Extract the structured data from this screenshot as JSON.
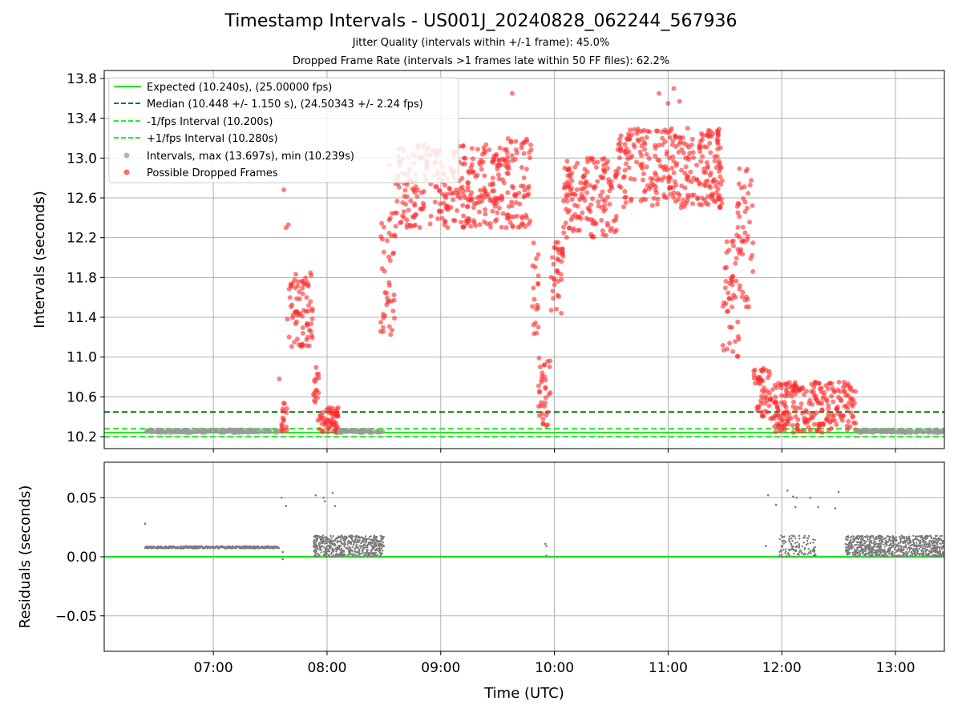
{
  "figure": {
    "title": "Timestamp Intervals - US001J_20240828_062244_567936",
    "subtitle_jitter": "Jitter Quality (intervals within +/-1 frame): 45.0%",
    "subtitle_dropped": "Dropped Frame Rate (intervals >1 frames late within 50 FF files): 62.2%"
  },
  "colors": {
    "expected": "#1ee21e",
    "median": "#007a00",
    "fps_bounds": "#22ee22",
    "intervals": "#999999",
    "dropped": "#ff2a2a",
    "residuals": "#7a7a7a",
    "grid": "#b0b0b0"
  },
  "chart_data": [
    {
      "type": "scatter",
      "xlabel": "",
      "ylabel": "Intervals (seconds)",
      "x_unit": "hours UTC",
      "xlim": [
        6.04,
        13.43
      ],
      "ylim": [
        10.08,
        13.88
      ],
      "yticks": [
        10.2,
        10.6,
        11.0,
        11.4,
        11.8,
        12.2,
        12.6,
        13.0,
        13.4,
        13.8
      ],
      "ytick_labels": [
        "10.2",
        "10.6",
        "11.0",
        "11.4",
        "11.8",
        "12.2",
        "12.6",
        "13.0",
        "13.4",
        "13.8"
      ],
      "xticks": [
        7,
        8,
        9,
        10,
        11,
        12,
        13
      ],
      "grid": true,
      "legend_position": "top-left",
      "legend": [
        "Expected (10.240s), (25.00000 fps)",
        "Median (10.448 +/- 1.150 s), (24.50343 +/- 2.24 fps)",
        "-1/fps Interval (10.200s)",
        "+1/fps Interval (10.280s)",
        "Intervals, max (13.697s), min (10.239s)",
        "Possible Dropped Frames"
      ],
      "hlines": [
        {
          "name": "Expected",
          "y": 10.24,
          "style": "solid"
        },
        {
          "name": "Median",
          "y": 10.448,
          "style": "dashed"
        },
        {
          "name": "-1/fps Interval",
          "y": 10.2,
          "style": "dashed"
        },
        {
          "name": "+1/fps Interval",
          "y": 10.28,
          "style": "dashed"
        }
      ],
      "segments": [
        {
          "x": [
            6.4,
            7.58
          ],
          "y": [
            10.24,
            10.27
          ],
          "kind": "intervals"
        },
        {
          "x": [
            7.6,
            7.65
          ],
          "y": [
            10.24,
            10.55
          ],
          "kind": "dropped"
        },
        {
          "x": [
            7.65,
            7.88
          ],
          "y": [
            11.1,
            11.85
          ],
          "kind": "dropped"
        },
        {
          "x": [
            7.88,
            7.93
          ],
          "y": [
            10.5,
            10.9
          ],
          "kind": "dropped"
        },
        {
          "x": [
            7.92,
            8.1
          ],
          "y": [
            10.24,
            10.5
          ],
          "kind": "dropped"
        },
        {
          "x": [
            8.1,
            8.5
          ],
          "y": [
            10.24,
            10.27
          ],
          "kind": "intervals"
        },
        {
          "x": [
            8.47,
            8.6
          ],
          "y": [
            11.2,
            12.5
          ],
          "kind": "dropped"
        },
        {
          "x": [
            8.6,
            9.55
          ],
          "y": [
            12.3,
            13.15
          ],
          "kind": "dropped"
        },
        {
          "x": [
            9.55,
            9.8
          ],
          "y": [
            12.3,
            13.2
          ],
          "kind": "dropped"
        },
        {
          "x": [
            9.8,
            9.86
          ],
          "y": [
            11.2,
            12.2
          ],
          "kind": "dropped"
        },
        {
          "x": [
            9.86,
            9.97
          ],
          "y": [
            10.3,
            11.0
          ],
          "kind": "dropped"
        },
        {
          "x": [
            9.97,
            10.08
          ],
          "y": [
            11.4,
            12.2
          ],
          "kind": "dropped"
        },
        {
          "x": [
            10.08,
            10.55
          ],
          "y": [
            12.2,
            13.0
          ],
          "kind": "dropped"
        },
        {
          "x": [
            10.55,
            11.48
          ],
          "y": [
            12.5,
            13.3
          ],
          "kind": "dropped"
        },
        {
          "x": [
            11.48,
            11.62
          ],
          "y": [
            11.0,
            12.2
          ],
          "kind": "dropped"
        },
        {
          "x": [
            11.6,
            11.75
          ],
          "y": [
            11.5,
            12.9
          ],
          "kind": "dropped"
        },
        {
          "x": [
            11.75,
            11.9
          ],
          "y": [
            10.4,
            10.9
          ],
          "kind": "dropped"
        },
        {
          "x": [
            11.9,
            12.65
          ],
          "y": [
            10.24,
            10.75
          ],
          "kind": "dropped"
        },
        {
          "x": [
            12.65,
            13.43
          ],
          "y": [
            10.24,
            10.27
          ],
          "kind": "intervals"
        }
      ],
      "outliers": [
        {
          "x": 7.62,
          "y": 12.68
        },
        {
          "x": 7.64,
          "y": 12.3
        },
        {
          "x": 7.66,
          "y": 12.33
        },
        {
          "x": 8.55,
          "y": 12.93
        },
        {
          "x": 9.63,
          "y": 13.65
        },
        {
          "x": 10.92,
          "y": 13.65
        },
        {
          "x": 11.0,
          "y": 13.55
        },
        {
          "x": 11.05,
          "y": 13.7
        },
        {
          "x": 11.1,
          "y": 13.57
        },
        {
          "x": 8.51,
          "y": 11.65
        },
        {
          "x": 7.58,
          "y": 10.78
        }
      ]
    },
    {
      "type": "scatter",
      "xlabel": "Time (UTC)",
      "ylabel": "Residuals (seconds)",
      "x_unit": "hours UTC",
      "xlim": [
        6.04,
        13.43
      ],
      "ylim": [
        -0.08,
        0.08
      ],
      "yticks": [
        -0.05,
        0.0,
        0.05
      ],
      "ytick_labels": [
        "−0.05",
        "0.00",
        "0.05"
      ],
      "xticks": [
        7,
        8,
        9,
        10,
        11,
        12,
        13
      ],
      "xtick_labels": [
        "07:00",
        "08:00",
        "09:00",
        "10:00",
        "11:00",
        "12:00",
        "13:00"
      ],
      "grid": true,
      "hline": {
        "y": 0.0
      },
      "segments": [
        {
          "x": [
            6.4,
            7.58
          ],
          "y": [
            0.007,
            0.009
          ],
          "kind": "line"
        },
        {
          "x": [
            7.88,
            8.5
          ],
          "y": [
            0.0,
            0.018
          ],
          "kind": "band"
        },
        {
          "x": [
            11.98,
            12.3
          ],
          "y": [
            0.0,
            0.018
          ],
          "kind": "band_sparse"
        },
        {
          "x": [
            12.56,
            13.43
          ],
          "y": [
            0.0,
            0.018
          ],
          "kind": "band"
        }
      ],
      "outliers": [
        {
          "x": 6.4,
          "y": 0.028
        },
        {
          "x": 7.6,
          "y": 0.05
        },
        {
          "x": 7.64,
          "y": 0.043
        },
        {
          "x": 7.61,
          "y": 0.004
        },
        {
          "x": 7.61,
          "y": -0.002
        },
        {
          "x": 7.9,
          "y": 0.052
        },
        {
          "x": 7.97,
          "y": 0.05
        },
        {
          "x": 7.98,
          "y": 0.047
        },
        {
          "x": 8.05,
          "y": 0.054
        },
        {
          "x": 8.07,
          "y": 0.043
        },
        {
          "x": 9.92,
          "y": 0.011
        },
        {
          "x": 9.93,
          "y": 0.009
        },
        {
          "x": 9.93,
          "y": 0.001
        },
        {
          "x": 11.86,
          "y": 0.009
        },
        {
          "x": 11.88,
          "y": 0.052
        },
        {
          "x": 11.95,
          "y": 0.044
        },
        {
          "x": 12.05,
          "y": 0.056
        },
        {
          "x": 12.1,
          "y": 0.051
        },
        {
          "x": 12.13,
          "y": 0.05
        },
        {
          "x": 12.12,
          "y": 0.042
        },
        {
          "x": 12.25,
          "y": 0.05
        },
        {
          "x": 12.32,
          "y": 0.042
        },
        {
          "x": 12.47,
          "y": 0.041
        },
        {
          "x": 12.5,
          "y": 0.055
        }
      ]
    }
  ]
}
